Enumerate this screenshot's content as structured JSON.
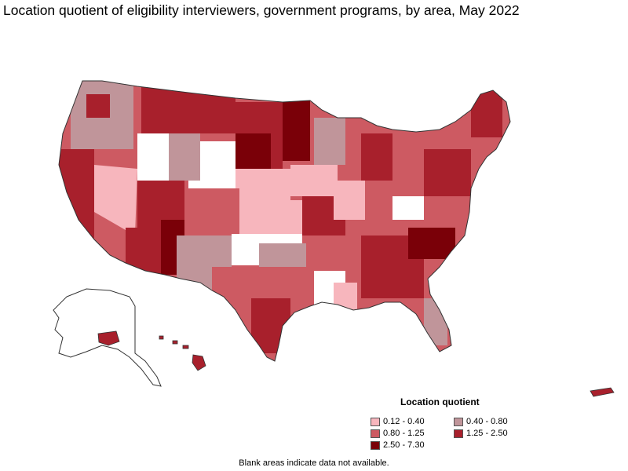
{
  "title": "Location quotient of eligibility interviewers, government programs, by area, May 2022",
  "legend": {
    "title": "Location quotient",
    "items": [
      {
        "label": "0.12 - 0.40",
        "color": "#f7b6bd"
      },
      {
        "label": "0.40 - 0.80",
        "color": "#c0959a"
      },
      {
        "label": "0.80 - 1.25",
        "color": "#cd5a62"
      },
      {
        "label": "1.25 - 2.50",
        "color": "#a8202c"
      },
      {
        "label": "2.50 - 7.30",
        "color": "#7a0008"
      }
    ]
  },
  "note": "Blank areas indicate data not available.",
  "colors": {
    "border": "#333333",
    "blank": "#ffffff"
  }
}
